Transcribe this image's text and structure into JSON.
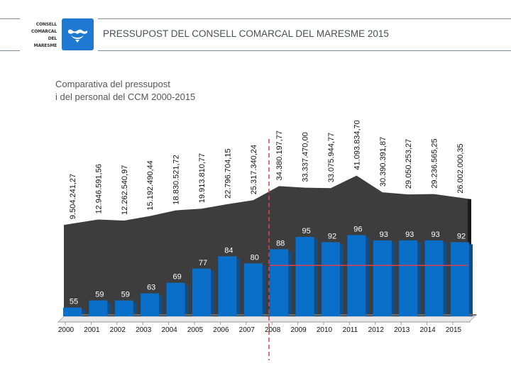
{
  "header": {
    "logo_lines": [
      "CONSELL",
      "COMARCAL",
      "DEL",
      "MARESME"
    ],
    "title": "PRESSUPOST DEL CONSELL COMARCAL DEL MARESME 2015",
    "brand_color": "#1f78d1"
  },
  "subtitle": {
    "line1": "Comparativa del pressupost",
    "line2": "i del personal del CCM 2000-2015"
  },
  "chart_data": {
    "type": "bar",
    "title": "Comparativa del pressupost i del personal del CCM 2000-2015",
    "xlabel": "",
    "ylabel": "",
    "categories": [
      "2000",
      "2001",
      "2002",
      "2003",
      "2004",
      "2005",
      "2006",
      "2007",
      "2008",
      "2009",
      "2010",
      "2011",
      "2012",
      "2013",
      "2014",
      "2015"
    ],
    "series": [
      {
        "name": "Personal",
        "type": "bar",
        "color": "#0a6fc9",
        "values": [
          55,
          59,
          59,
          63,
          69,
          77,
          84,
          80,
          88,
          95,
          92,
          96,
          93,
          93,
          93,
          92
        ]
      },
      {
        "name": "Pressupost",
        "type": "area",
        "color": "#3d3d3d",
        "values": [
          9504241.27,
          12946591.56,
          12262540.97,
          15192490.44,
          18830521.72,
          19913810.77,
          22796704.15,
          25317340.24,
          34380197.77,
          33337470.0,
          33075944.77,
          41093834.7,
          30390391.87,
          29050253.27,
          29236565.25,
          26002000.35
        ],
        "labels": [
          "9.504.241,27",
          "12.946.591,56",
          "12.262.540,97",
          "15.192.490,44",
          "18.830.521,72",
          "19.913.810,77",
          "22.796.704,15",
          "25.317.340,24",
          "34.380.197,77",
          "33.337.470,00",
          "33.075.944,77",
          "41.093.834,70",
          "30.390.391,87",
          "29.050.253,27",
          "29.236.565,25",
          "26.002.000,35"
        ]
      }
    ],
    "annotations": {
      "vertical_divider": {
        "between": [
          "2007",
          "2008"
        ],
        "style": "dashed",
        "color": "#d9434e"
      },
      "horizontal_reference": {
        "value": 80,
        "from": "2008",
        "to": "2015",
        "color": "#d9434e"
      }
    },
    "grid": false,
    "legend": "none"
  }
}
